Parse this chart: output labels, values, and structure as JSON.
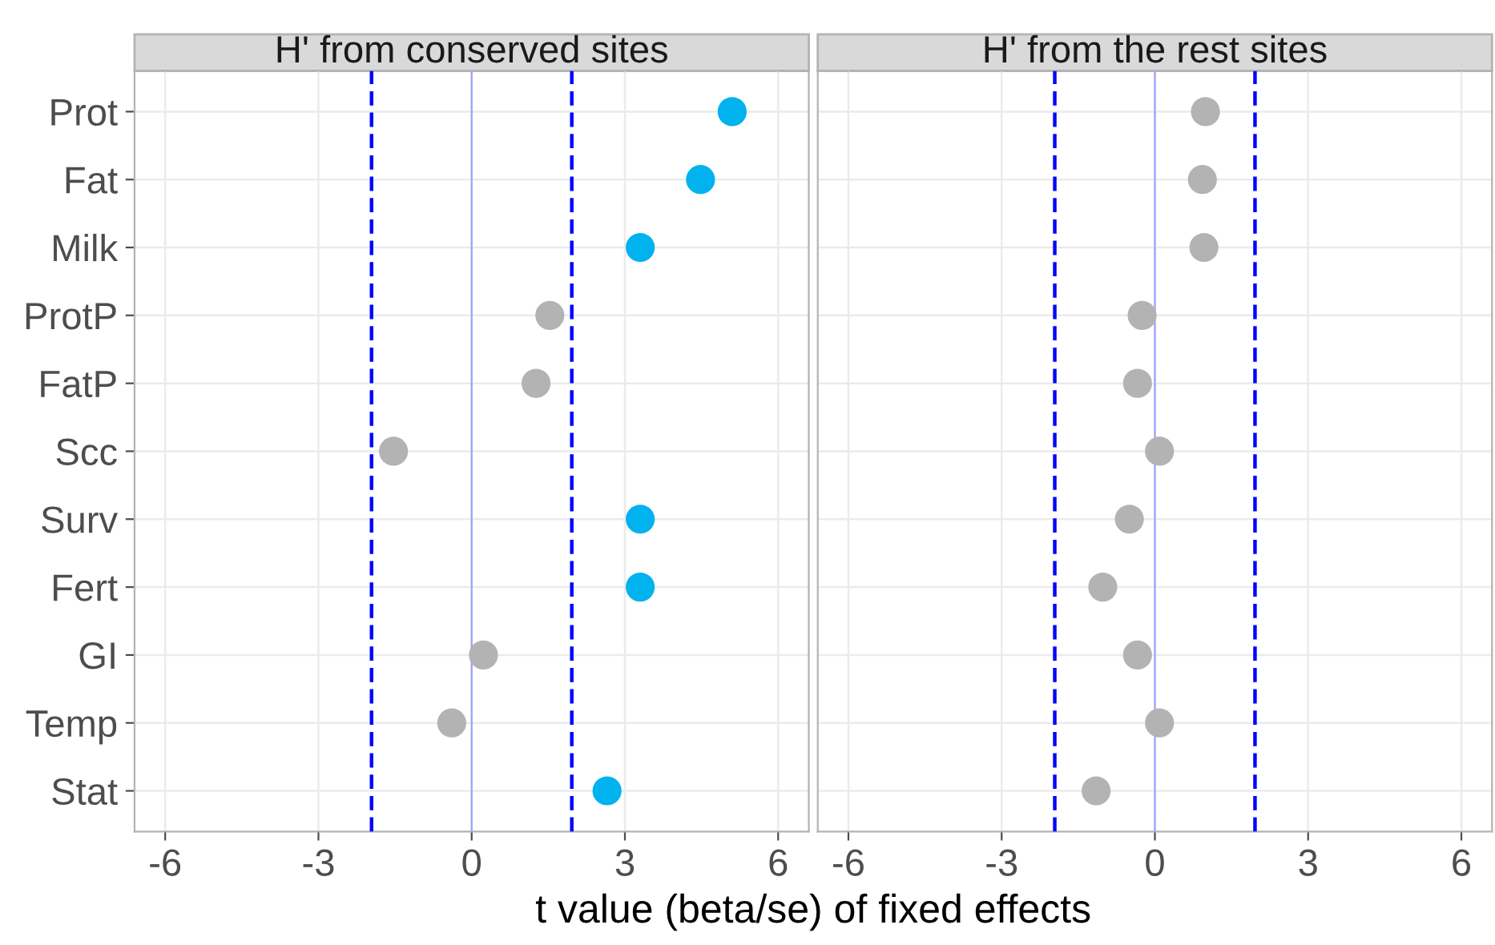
{
  "chart_data": [
    {
      "type": "scatter",
      "orientation": "horizontal",
      "title": "H' from conserved sites",
      "xlabel": "t value (beta/se) of fixed effects",
      "categories": [
        "Prot",
        "Fat",
        "Milk",
        "ProtP",
        "FatP",
        "Scc",
        "Surv",
        "Fert",
        "GI",
        "Temp",
        "Stat"
      ],
      "series": [
        {
          "values": [
            5.1,
            4.48,
            3.3,
            1.53,
            1.26,
            -1.53,
            3.3,
            3.3,
            0.23,
            -0.39,
            2.65
          ],
          "colors": [
            "#00b2ee",
            "#00b2ee",
            "#00b2ee",
            "#b3b3b3",
            "#b3b3b3",
            "#b3b3b3",
            "#00b2ee",
            "#00b2ee",
            "#b3b3b3",
            "#b3b3b3",
            "#00b2ee"
          ]
        }
      ],
      "xlim": [
        -6.6,
        6.6
      ],
      "xticks": [
        -6,
        -3,
        0,
        3,
        6
      ],
      "grid": true,
      "marker": "circle",
      "ref_lines": [
        {
          "axis": "x",
          "value": -1.96,
          "color": "#0000ff",
          "line_style": "dashed"
        },
        {
          "axis": "x",
          "value": 0,
          "color": "#9f9fff",
          "line_style": "solid"
        },
        {
          "axis": "x",
          "value": 1.96,
          "color": "#0000ff",
          "line_style": "dashed"
        }
      ]
    },
    {
      "type": "scatter",
      "orientation": "horizontal",
      "title": "H' from the rest sites",
      "categories": [
        null,
        null,
        null,
        null,
        null,
        null,
        null,
        null,
        null,
        null,
        null
      ],
      "series": [
        {
          "values": [
            0.99,
            0.93,
            0.96,
            -0.25,
            -0.34,
            0.09,
            -0.5,
            -1.02,
            -0.34,
            0.09,
            -1.15
          ],
          "colors": [
            "#b3b3b3",
            "#b3b3b3",
            "#b3b3b3",
            "#b3b3b3",
            "#b3b3b3",
            "#b3b3b3",
            "#b3b3b3",
            "#b3b3b3",
            "#b3b3b3",
            "#b3b3b3",
            "#b3b3b3"
          ]
        }
      ],
      "xlim": [
        -6.6,
        6.6
      ],
      "xticks": [
        -6,
        -3,
        0,
        3,
        6
      ],
      "grid": true,
      "marker": "circle",
      "tick_labels": "x",
      "ref_lines": [
        {
          "axis": "x",
          "value": -1.96,
          "color": "#0000ff",
          "line_style": "dashed"
        },
        {
          "axis": "x",
          "value": 0,
          "color": "#9f9fff",
          "line_style": "solid"
        },
        {
          "axis": "x",
          "value": 1.96,
          "color": "#0000ff",
          "line_style": "dashed"
        }
      ]
    }
  ]
}
